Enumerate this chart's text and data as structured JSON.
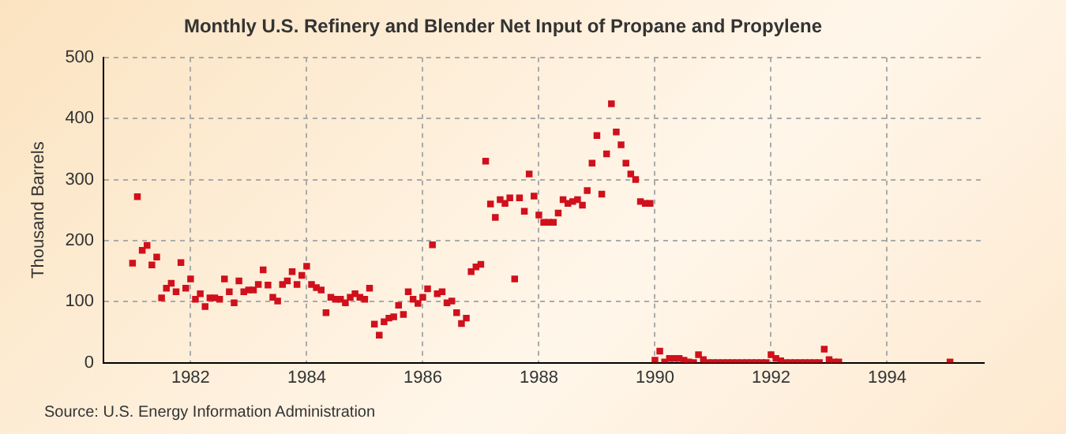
{
  "chart_data": {
    "type": "scatter",
    "title": "Monthly U.S. Refinery and Blender Net Input of Propane and Propylene",
    "ylabel": "Thousand Barrels",
    "annotations": [
      "Source: U.S. Energy Information Administration"
    ],
    "x": [
      "1981-01",
      "1981-02",
      "1981-03",
      "1981-04",
      "1981-05",
      "1981-06",
      "1981-07",
      "1981-08",
      "1981-09",
      "1981-10",
      "1981-11",
      "1981-12",
      "1982-01",
      "1982-02",
      "1982-03",
      "1982-04",
      "1982-05",
      "1982-06",
      "1982-07",
      "1982-08",
      "1982-09",
      "1982-10",
      "1982-11",
      "1982-12",
      "1983-01",
      "1983-02",
      "1983-03",
      "1983-04",
      "1983-05",
      "1983-06",
      "1983-07",
      "1983-08",
      "1983-09",
      "1983-10",
      "1983-11",
      "1983-12",
      "1984-01",
      "1984-02",
      "1984-03",
      "1984-04",
      "1984-05",
      "1984-06",
      "1984-07",
      "1984-08",
      "1984-09",
      "1984-10",
      "1984-11",
      "1984-12",
      "1985-01",
      "1985-02",
      "1985-03",
      "1985-04",
      "1985-05",
      "1985-06",
      "1985-07",
      "1985-08",
      "1985-09",
      "1985-10",
      "1985-11",
      "1985-12",
      "1986-01",
      "1986-02",
      "1986-03",
      "1986-04",
      "1986-05",
      "1986-06",
      "1986-07",
      "1986-08",
      "1986-09",
      "1986-10",
      "1986-11",
      "1986-12",
      "1987-01",
      "1987-02",
      "1987-03",
      "1987-04",
      "1987-05",
      "1987-06",
      "1987-07",
      "1987-08",
      "1987-09",
      "1987-10",
      "1987-11",
      "1987-12",
      "1988-01",
      "1988-02",
      "1988-03",
      "1988-04",
      "1988-05",
      "1988-06",
      "1988-07",
      "1988-08",
      "1988-09",
      "1988-10",
      "1988-11",
      "1988-12",
      "1989-01",
      "1989-02",
      "1989-03",
      "1989-04",
      "1989-05",
      "1989-06",
      "1989-07",
      "1989-08",
      "1989-09",
      "1989-10",
      "1989-11",
      "1989-12",
      "1990-01",
      "1990-02",
      "1990-03",
      "1990-04",
      "1990-05",
      "1990-06",
      "1990-07",
      "1990-08",
      "1990-09",
      "1990-10",
      "1990-11",
      "1990-12",
      "1991-01",
      "1991-02",
      "1991-03",
      "1991-04",
      "1991-05",
      "1991-06",
      "1991-07",
      "1991-08",
      "1991-09",
      "1991-10",
      "1991-11",
      "1991-12",
      "1992-01",
      "1992-02",
      "1992-03",
      "1992-04",
      "1992-05",
      "1992-06",
      "1992-07",
      "1992-08",
      "1992-09",
      "1992-10",
      "1992-11",
      "1992-12",
      "1993-01",
      "1993-02",
      "1993-03",
      "1995-02"
    ],
    "values": [
      163,
      272,
      184,
      192,
      160,
      173,
      106,
      122,
      130,
      116,
      164,
      122,
      137,
      104,
      113,
      92,
      106,
      106,
      104,
      137,
      116,
      98,
      134,
      116,
      119,
      119,
      128,
      152,
      127,
      107,
      101,
      128,
      134,
      149,
      128,
      143,
      158,
      128,
      123,
      119,
      82,
      107,
      104,
      104,
      98,
      107,
      113,
      107,
      104,
      122,
      63,
      45,
      67,
      73,
      75,
      94,
      79,
      116,
      104,
      97,
      107,
      121,
      193,
      113,
      116,
      98,
      101,
      82,
      64,
      73,
      149,
      157,
      161,
      330,
      260,
      238,
      267,
      261,
      270,
      137,
      270,
      248,
      309,
      273,
      242,
      230,
      230,
      230,
      245,
      267,
      261,
      264,
      267,
      258,
      282,
      327,
      372,
      276,
      342,
      424,
      378,
      357,
      327,
      309,
      300,
      264,
      261,
      261,
      4,
      19,
      1,
      7,
      7,
      7,
      4,
      1,
      0,
      13,
      5,
      0,
      0,
      0,
      0,
      0,
      0,
      0,
      0,
      0,
      0,
      0,
      0,
      0,
      13,
      7,
      3,
      0,
      0,
      0,
      0,
      0,
      0,
      0,
      0,
      22,
      5,
      1,
      1,
      1
    ],
    "color": "#d0101c",
    "marker": "square",
    "grid": true,
    "legend": false,
    "xlim": [
      "1980-07",
      "1995-09"
    ],
    "xticks": [
      "1982",
      "1984",
      "1986",
      "1988",
      "1990",
      "1992",
      "1994"
    ],
    "ylim": [
      0,
      500
    ],
    "yticks": [
      0,
      100,
      200,
      300,
      400,
      500
    ]
  }
}
